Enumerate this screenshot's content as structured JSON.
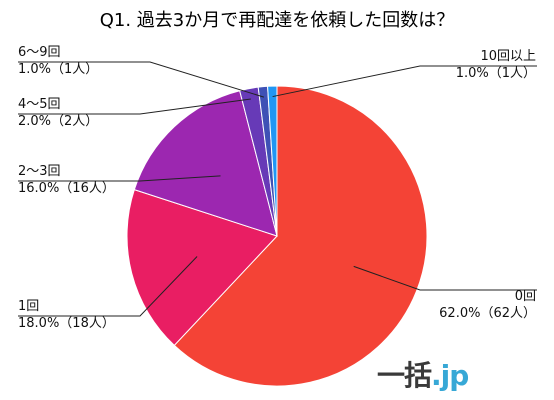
{
  "chart_data": {
    "type": "pie",
    "title": "Q1. 過去3か月で再配達を依頼した回数は？",
    "start_angle_deg": 0,
    "direction": "clockwise",
    "slices": [
      {
        "label": "0回",
        "value": 62.0,
        "value_text": "62.0%（62人）",
        "color": "#f44336"
      },
      {
        "label": "1回",
        "value": 18.0,
        "value_text": "18.0%（18人）",
        "color": "#e91e63"
      },
      {
        "label": "2～3回",
        "value": 16.0,
        "value_text": "16.0%（16人）",
        "color": "#9c27b0"
      },
      {
        "label": "4～5回",
        "value": 2.0,
        "value_text": "2.0%（2人）",
        "color": "#673ab7"
      },
      {
        "label": "6～9回",
        "value": 1.0,
        "value_text": "1.0%（1人）",
        "color": "#3f51b5"
      },
      {
        "label": "10回以上",
        "value": 1.0,
        "value_text": "1.0%（1人）",
        "color": "#2196f3"
      }
    ]
  },
  "logo": {
    "main": "一括",
    "suffix": ".jp"
  }
}
